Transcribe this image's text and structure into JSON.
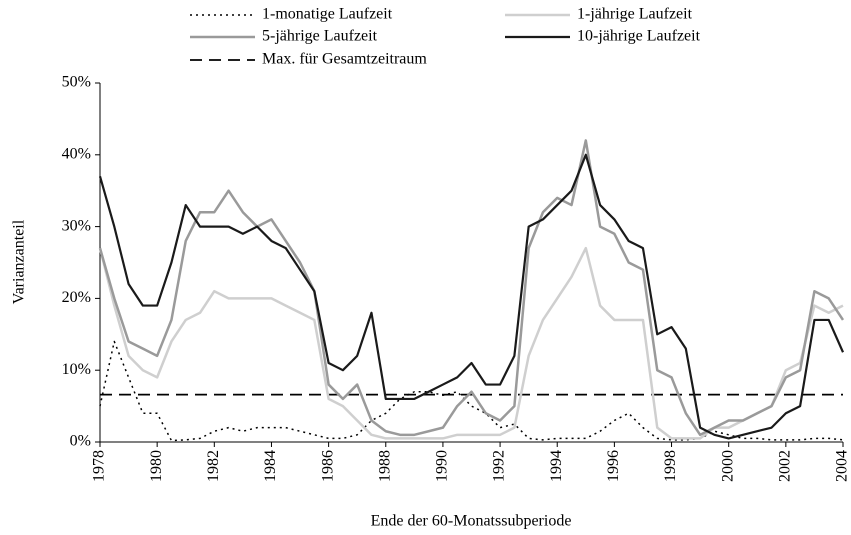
{
  "chart_data": {
    "type": "line",
    "y_label": "Varianzanteil",
    "x_label": "Ende der 60-Monatssubperiode",
    "x": [
      1978,
      1978.5,
      1979,
      1979.5,
      1980,
      1980.5,
      1981,
      1981.5,
      1982,
      1982.5,
      1983,
      1983.5,
      1984,
      1984.5,
      1985,
      1985.5,
      1986,
      1986.5,
      1987,
      1987.5,
      1988,
      1988.5,
      1989,
      1989.5,
      1990,
      1990.5,
      1991,
      1991.5,
      1992,
      1992.5,
      1993,
      1993.5,
      1994,
      1994.5,
      1995,
      1995.5,
      1996,
      1996.5,
      1997,
      1997.5,
      1998,
      1998.5,
      1999,
      1999.5,
      2000,
      2000.5,
      2001,
      2001.5,
      2002,
      2002.5,
      2003,
      2003.5,
      2004
    ],
    "series": [
      {
        "name": "1-monatige Laufzeit",
        "color": "#000000",
        "dash": "dotted",
        "width": 1.5,
        "values": [
          5,
          14,
          9,
          4,
          4,
          0.2,
          0.3,
          0.5,
          1.5,
          2,
          1.5,
          2,
          2,
          2,
          1.5,
          1,
          0.5,
          0.5,
          1,
          3,
          4,
          6,
          7,
          7,
          6.5,
          7,
          5,
          4,
          2,
          2.5,
          0.5,
          0.3,
          0.5,
          0.5,
          0.5,
          1.5,
          3,
          4,
          2,
          0.5,
          0.3,
          0.3,
          0.5,
          1.5,
          1,
          0.5,
          0.5,
          0.3,
          0.3,
          0.3,
          0.5,
          0.5,
          0.3
        ]
      },
      {
        "name": "1-jährige Laufzeit",
        "color": "#cfcfcf",
        "dash": "solid",
        "width": 2.5,
        "values": [
          27,
          19,
          12,
          10,
          9,
          14,
          17,
          18,
          21,
          20,
          20,
          20,
          20,
          19,
          18,
          17,
          6,
          5,
          3,
          1,
          0.5,
          0.5,
          0.5,
          0.5,
          0.5,
          1,
          1,
          1,
          1,
          2,
          12,
          17,
          20,
          23,
          27,
          19,
          17,
          17,
          17,
          2,
          0.5,
          0.5,
          0.5,
          2,
          2,
          3,
          4,
          5,
          10,
          11,
          19,
          18,
          19
        ]
      },
      {
        "name": "5-jährige Laufzeit",
        "color": "#9a9a9a",
        "dash": "solid",
        "width": 2.5,
        "values": [
          27,
          20,
          14,
          13,
          12,
          17,
          28,
          32,
          32,
          35,
          32,
          30,
          31,
          28,
          25,
          21,
          8,
          6,
          8,
          3,
          1.5,
          1,
          1,
          1.5,
          2,
          5,
          7,
          4,
          3,
          5,
          27,
          32,
          34,
          33,
          42,
          30,
          29,
          25,
          24,
          10,
          9,
          4,
          1,
          2,
          3,
          3,
          4,
          5,
          9,
          10,
          21,
          20,
          17
        ]
      },
      {
        "name": "10-jährige Laufzeit",
        "color": "#1a1a1a",
        "dash": "solid",
        "width": 2.2,
        "values": [
          37,
          30,
          22,
          19,
          19,
          25,
          33,
          30,
          30,
          30,
          29,
          30,
          28,
          27,
          24,
          21,
          11,
          10,
          12,
          18,
          6,
          6,
          6,
          7,
          8,
          9,
          11,
          8,
          8,
          12,
          30,
          31,
          33,
          35,
          40,
          33,
          31,
          28,
          27,
          15,
          16,
          13,
          2,
          1,
          0.5,
          1,
          1.5,
          2,
          4,
          5,
          17,
          17,
          12.5
        ]
      }
    ],
    "reference_line": {
      "name": "Max. für Gesamtzeitraum",
      "value": 6.6,
      "color": "#000000",
      "dash": "dashed"
    },
    "xlim": [
      1978,
      2004
    ],
    "xticks": [
      1978,
      1980,
      1982,
      1984,
      1986,
      1988,
      1990,
      1992,
      1994,
      1996,
      1998,
      2000,
      2002,
      2004
    ],
    "ylim": [
      0,
      50
    ],
    "yticks": [
      {
        "value": 0,
        "label": "0%"
      },
      {
        "value": 10,
        "label": "10%"
      },
      {
        "value": 20,
        "label": "20%"
      },
      {
        "value": 30,
        "label": "30%"
      },
      {
        "value": 40,
        "label": "40%"
      },
      {
        "value": 50,
        "label": "50%"
      }
    ]
  }
}
